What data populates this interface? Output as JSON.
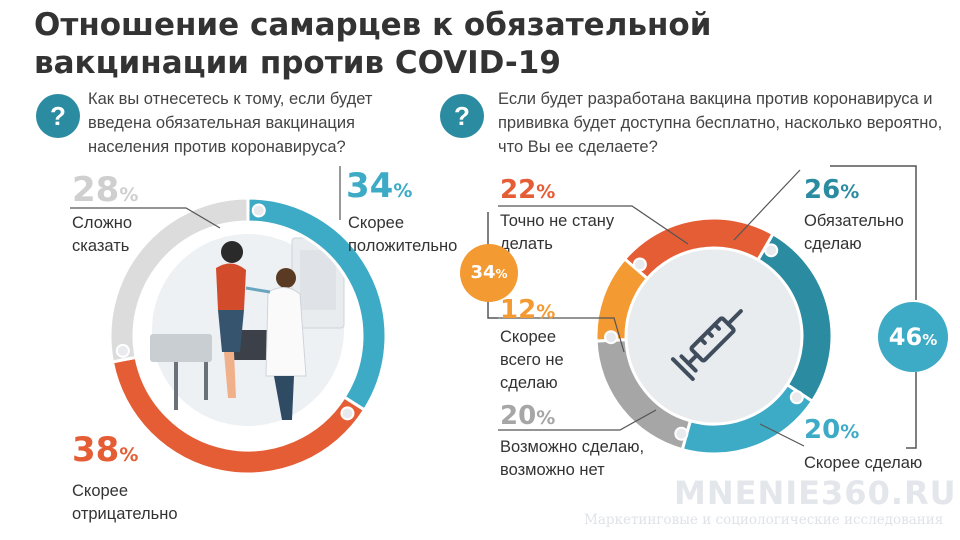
{
  "title": "Отношение самарцев к обязательной вакцинации против COVID-19",
  "question_icon": "?",
  "left": {
    "question": "Как вы отнесетесь к тому, если будет введена обязательная вакцинация населения против коронавируса?"
  },
  "right": {
    "question": "Если будет разработана вакцина против коронавируса и прививка будет доступна бесплатно, насколько вероятно, что Вы ее сделаете?",
    "group_left_value": "34",
    "group_right_value": "46",
    "center_icon": "syringe-icon"
  },
  "colors": {
    "orange": "#e45d35",
    "blue": "#3eabc6",
    "gray": "#dcdcdc",
    "teal": "#2b8ba1",
    "amber": "#f39a33",
    "midgray": "#a6a6a6",
    "navy": "#2f4a63"
  },
  "chart_data": [
    {
      "type": "pie",
      "slices": [
        {
          "value": 34,
          "label": "Скорее положительно",
          "color": "#3eabc6"
        },
        {
          "value": 38,
          "label": "Скорее отрицательно",
          "color": "#e45d35"
        },
        {
          "value": 28,
          "label": "Сложно сказать",
          "color": "#dcdcdc"
        }
      ],
      "unit": "%"
    },
    {
      "type": "pie",
      "slices": [
        {
          "value": 26,
          "label": "Обязательно сделаю",
          "color": "#2b8ba1"
        },
        {
          "value": 20,
          "label": "Скорее сделаю",
          "color": "#3eabc6"
        },
        {
          "value": 20,
          "label": "Возможно сделаю, возможно нет",
          "color": "#a6a6a6"
        },
        {
          "value": 12,
          "label": "Скорее всего не сделаю",
          "color": "#f39a33"
        },
        {
          "value": 22,
          "label": "Точно не стану делать",
          "color": "#e45d35"
        }
      ],
      "unit": "%"
    }
  ],
  "watermark": {
    "brand": "MNENIE360.RU",
    "tagline": "Маркетинговые и социологические исследования"
  }
}
